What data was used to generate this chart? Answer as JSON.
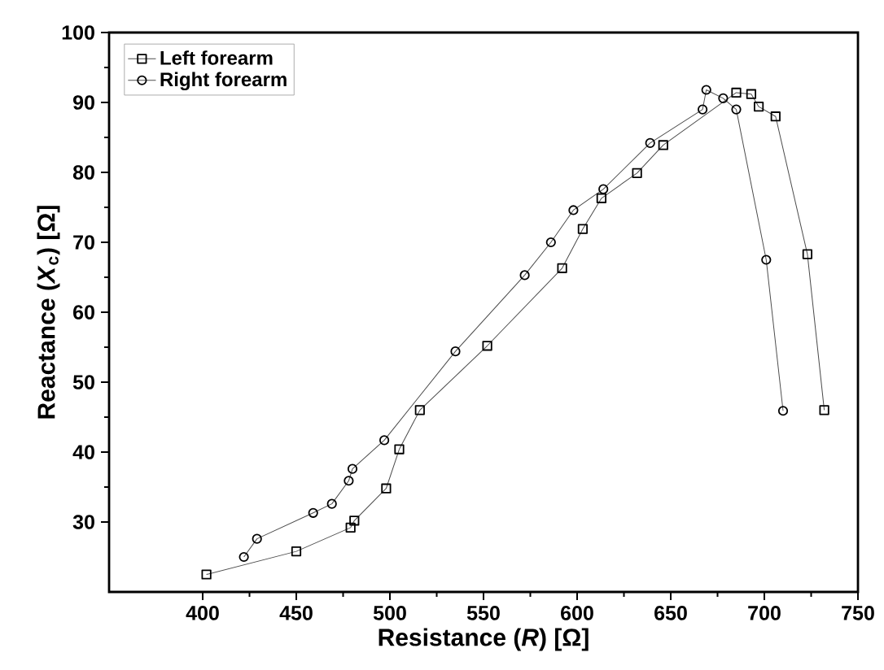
{
  "chart_data": {
    "type": "line",
    "xlabel": "Resistance (*R*) [Ω]",
    "ylabel": "Reactance (*X*$_{c}$) [Ω]",
    "xlim": [
      350,
      750
    ],
    "ylim": [
      20,
      100
    ],
    "xticks": [
      400,
      450,
      500,
      550,
      600,
      650,
      700,
      750
    ],
    "yticks": [
      30,
      40,
      50,
      60,
      70,
      80,
      90,
      100
    ],
    "legend": "top left",
    "grid": false,
    "line_style": "solid",
    "series": [
      {
        "name": "Left forearm",
        "color": "#000000",
        "marker": "square",
        "x": [
          402,
          450,
          479,
          481,
          498,
          505,
          516,
          552,
          592,
          603,
          613,
          632,
          646,
          685,
          693,
          697,
          706,
          723,
          732
        ],
        "values": [
          22.5,
          25.8,
          29.2,
          30.2,
          34.8,
          40.4,
          46.0,
          55.2,
          66.3,
          71.9,
          76.3,
          79.9,
          83.9,
          91.4,
          91.2,
          89.4,
          88.0,
          68.3,
          46.0
        ]
      },
      {
        "name": "Right forearm",
        "color": "#000000",
        "marker": "circle",
        "x": [
          422,
          429,
          459,
          469,
          478,
          480,
          497,
          535,
          572,
          586,
          598,
          614,
          639,
          667,
          669,
          678,
          685,
          701,
          710
        ],
        "values": [
          25.0,
          27.6,
          31.3,
          32.6,
          35.9,
          37.6,
          41.7,
          54.4,
          65.3,
          70.0,
          74.6,
          77.6,
          84.2,
          89.0,
          91.8,
          90.6,
          89.0,
          67.5,
          45.9
        ]
      }
    ]
  }
}
